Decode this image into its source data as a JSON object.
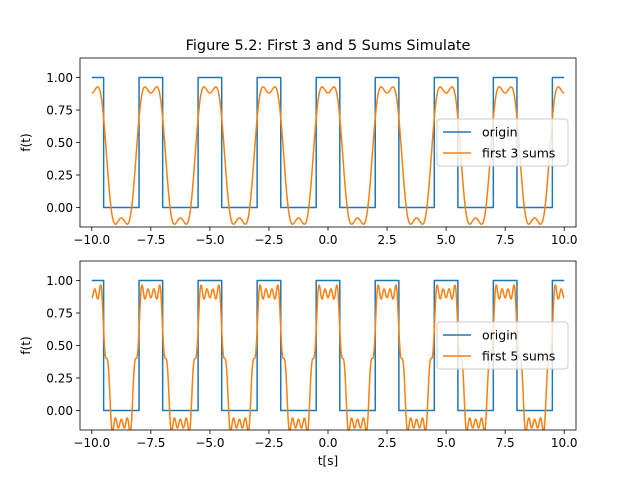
{
  "chart_data": [
    {
      "type": "line",
      "title": "Figure 5.2: First 3 and 5 Sums Simulate",
      "xlabel": "",
      "ylabel": "f(t)",
      "xlim": [
        -10.5,
        10.5
      ],
      "ylim": [
        -0.15,
        1.15
      ],
      "xticks": [
        "−10.0",
        "−7.5",
        "−5.0",
        "−2.5",
        "0.0",
        "2.5",
        "5.0",
        "7.5",
        "10.0"
      ],
      "xtick_values": [
        -10,
        -7.5,
        -5,
        -2.5,
        0,
        2.5,
        5,
        7.5,
        10
      ],
      "yticks": [
        "0.00",
        "0.25",
        "0.50",
        "0.75",
        "1.00"
      ],
      "ytick_values": [
        0,
        0.25,
        0.5,
        0.75,
        1.0
      ],
      "t_range": [
        -10,
        10
      ],
      "square_wave": {
        "period": 2.5,
        "high": 1,
        "low": 0,
        "high_from": -0.5,
        "high_to": 0.5
      },
      "grid": false,
      "legend_position": "center-right",
      "series": [
        {
          "name": "origin",
          "kind": "square",
          "color": "#1f77b4"
        },
        {
          "name": "first 3 sums",
          "kind": "fourier",
          "harmonics": [
            1,
            3,
            5
          ],
          "color": "#ff7f0e"
        }
      ]
    },
    {
      "type": "line",
      "title": "",
      "xlabel": "t[s]",
      "ylabel": "f(t)",
      "xlim": [
        -10.5,
        10.5
      ],
      "ylim": [
        -0.15,
        1.15
      ],
      "xticks": [
        "−10.0",
        "−7.5",
        "−5.0",
        "−2.5",
        "0.0",
        "2.5",
        "5.0",
        "7.5",
        "10.0"
      ],
      "xtick_values": [
        -10,
        -7.5,
        -5,
        -2.5,
        0,
        2.5,
        5,
        7.5,
        10
      ],
      "yticks": [
        "0.00",
        "0.25",
        "0.50",
        "0.75",
        "1.00"
      ],
      "ytick_values": [
        0,
        0.25,
        0.5,
        0.75,
        1.0
      ],
      "t_range": [
        -10,
        10
      ],
      "square_wave": {
        "period": 2.5,
        "high": 1,
        "low": 0,
        "high_from": -0.5,
        "high_to": 0.5
      },
      "grid": false,
      "legend_position": "center-right",
      "series": [
        {
          "name": "origin",
          "kind": "square",
          "color": "#1f77b4"
        },
        {
          "name": "first 5 sums",
          "kind": "fourier",
          "harmonics": [
            1,
            3,
            5,
            7,
            9
          ],
          "color": "#ff7f0e"
        }
      ]
    }
  ]
}
